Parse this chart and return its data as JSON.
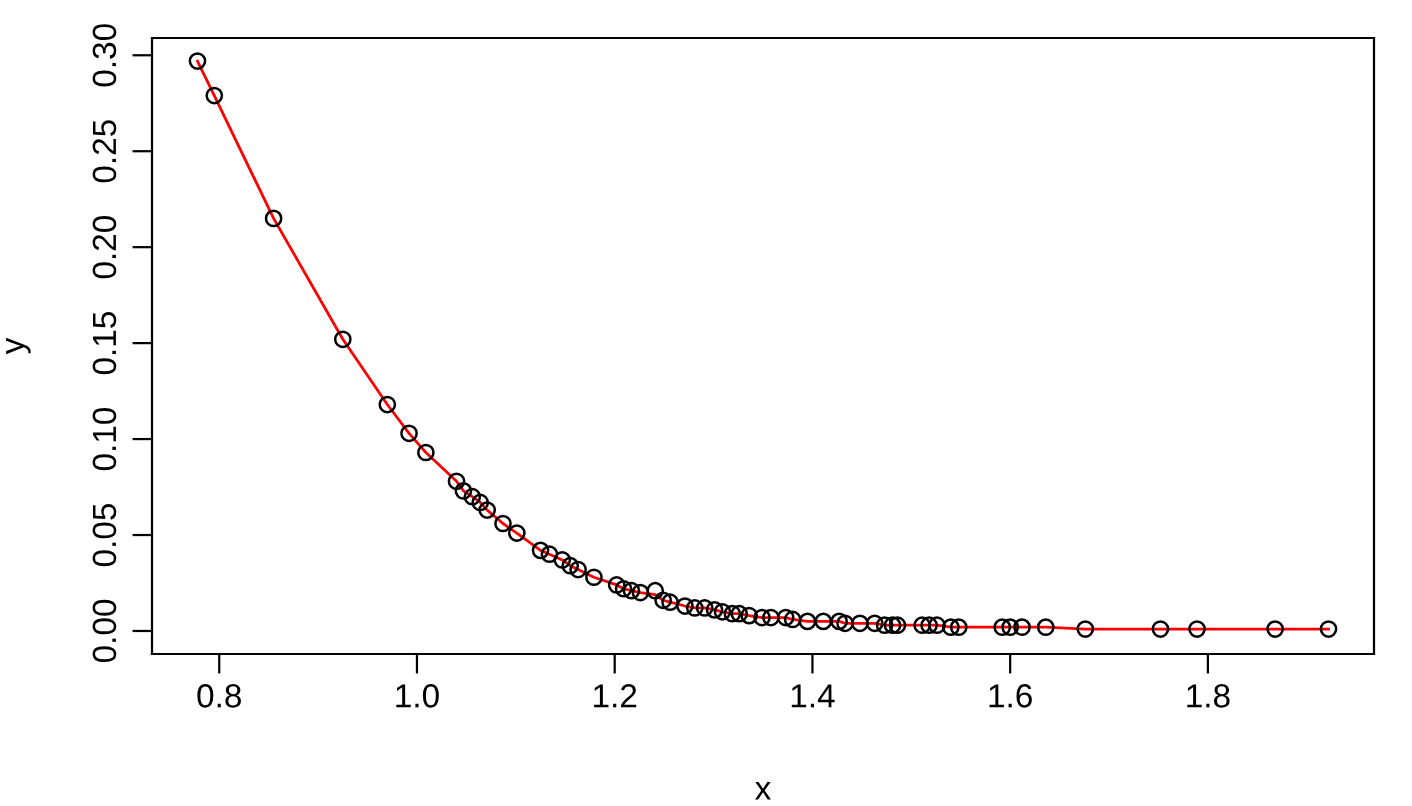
{
  "chart_data": {
    "type": "scatter",
    "xlabel": "x",
    "ylabel": "y",
    "xlim": [
      0.732,
      1.968
    ],
    "ylim": [
      -0.012,
      0.309
    ],
    "xticks": [
      {
        "value": 0.8,
        "label": "0.8"
      },
      {
        "value": 1.0,
        "label": "1.0"
      },
      {
        "value": 1.2,
        "label": "1.2"
      },
      {
        "value": 1.4,
        "label": "1.4"
      },
      {
        "value": 1.6,
        "label": "1.6"
      },
      {
        "value": 1.8,
        "label": "1.8"
      }
    ],
    "yticks": [
      {
        "value": 0,
        "label": "0.00"
      },
      {
        "value": 0.05,
        "label": "0.05"
      },
      {
        "value": 0.1,
        "label": "0.10"
      },
      {
        "value": 0.15,
        "label": "0.15"
      },
      {
        "value": 0.2,
        "label": "0.20"
      },
      {
        "value": 0.25,
        "label": "0.25"
      },
      {
        "value": 0.3,
        "label": "0.30"
      }
    ],
    "grid": false,
    "x": [
      0.778,
      0.795,
      0.855,
      0.925,
      0.97,
      0.992,
      1.009,
      1.04,
      1.047,
      1.056,
      1.064,
      1.071,
      1.087,
      1.101,
      1.125,
      1.134,
      1.147,
      1.155,
      1.163,
      1.179,
      1.202,
      1.209,
      1.217,
      1.226,
      1.241,
      1.249,
      1.256,
      1.271,
      1.281,
      1.291,
      1.301,
      1.309,
      1.319,
      1.326,
      1.336,
      1.349,
      1.358,
      1.373,
      1.38,
      1.395,
      1.411,
      1.427,
      1.433,
      1.448,
      1.463,
      1.473,
      1.481,
      1.486,
      1.511,
      1.518,
      1.526,
      1.54,
      1.548,
      1.592,
      1.6,
      1.612,
      1.636,
      1.676,
      1.752,
      1.789,
      1.868,
      1.922
    ],
    "series": [
      {
        "type": "line",
        "color": "#ff0000",
        "marker": "none",
        "line_style": "solid",
        "values": [
          0.297,
          0.279,
          0.215,
          0.152,
          0.118,
          0.103,
          0.093,
          0.078,
          0.073,
          0.07,
          0.067,
          0.063,
          0.056,
          0.051,
          0.042,
          0.04,
          0.037,
          0.034,
          0.032,
          0.028,
          0.024,
          0.022,
          0.021,
          0.02,
          0.019,
          0.016,
          0.015,
          0.013,
          0.012,
          0.012,
          0.011,
          0.01,
          0.009,
          0.009,
          0.008,
          0.007,
          0.007,
          0.007,
          0.006,
          0.005,
          0.005,
          0.005,
          0.004,
          0.004,
          0.004,
          0.003,
          0.003,
          0.003,
          0.003,
          0.003,
          0.003,
          0.002,
          0.002,
          0.002,
          0.002,
          0.002,
          0.002,
          0.001,
          0.001,
          0.001,
          0.001,
          0.001
        ]
      },
      {
        "color": "#000000",
        "marker": "circle",
        "values": [
          0.297,
          0.279,
          0.215,
          0.152,
          0.118,
          0.103,
          0.093,
          0.078,
          0.073,
          0.07,
          0.067,
          0.063,
          0.056,
          0.051,
          0.042,
          0.04,
          0.037,
          0.034,
          0.032,
          0.028,
          0.024,
          0.022,
          0.021,
          0.02,
          0.021,
          0.016,
          0.015,
          0.013,
          0.012,
          0.012,
          0.011,
          0.01,
          0.009,
          0.009,
          0.008,
          0.007,
          0.007,
          0.007,
          0.006,
          0.005,
          0.005,
          0.005,
          0.004,
          0.004,
          0.004,
          0.003,
          0.003,
          0.003,
          0.003,
          0.003,
          0.003,
          0.002,
          0.002,
          0.002,
          0.002,
          0.002,
          0.002,
          0.001,
          0.001,
          0.001,
          0.001,
          0.001
        ]
      }
    ]
  }
}
